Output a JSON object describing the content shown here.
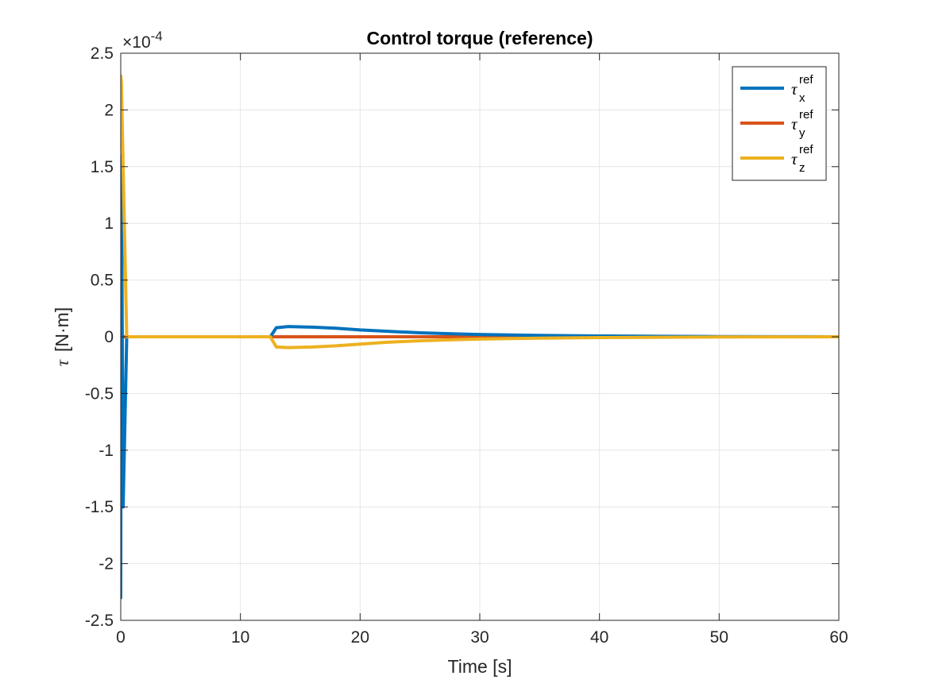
{
  "chart_data": {
    "type": "line",
    "title": "Control torque (reference)",
    "xlabel": "Time [s]",
    "ylabel_symbol": "τ",
    "ylabel_unit": "[N·m]",
    "y_exponent_base": "×10",
    "y_exponent_power": "-4",
    "xlim": [
      0,
      60
    ],
    "ylim": [
      -2.5,
      2.5
    ],
    "y_scale_factor": 0.0001,
    "x_ticks": [
      0,
      10,
      20,
      30,
      40,
      50,
      60
    ],
    "x_tick_labels": [
      "0",
      "10",
      "20",
      "30",
      "40",
      "50",
      "60"
    ],
    "y_ticks": [
      -2.5,
      -2,
      -1.5,
      -1,
      -0.5,
      0,
      0.5,
      1,
      1.5,
      2,
      2.5
    ],
    "y_tick_labels": [
      "-2.5",
      "-2",
      "-1.5",
      "-1",
      "-0.5",
      "0",
      "0.5",
      "1",
      "1.5",
      "2",
      "2.5"
    ],
    "grid": true,
    "legend_position": "top-right",
    "series": [
      {
        "name": "τx ref",
        "symbol": "τ",
        "subscript": "x",
        "superscript": "ref",
        "color": "#0072BD",
        "x": [
          0,
          0.05,
          0.2,
          0.5,
          1,
          12.5,
          13,
          14,
          16,
          18,
          20,
          22,
          25,
          28,
          30,
          35,
          40,
          45,
          50,
          55,
          60
        ],
        "y": [
          -2.3,
          1.6,
          -1.5,
          0,
          0,
          0,
          0.08,
          0.09,
          0.085,
          0.075,
          0.06,
          0.05,
          0.035,
          0.025,
          0.02,
          0.012,
          0.007,
          0.004,
          0.002,
          0.001,
          0
        ]
      },
      {
        "name": "τy ref",
        "symbol": "τ",
        "subscript": "y",
        "superscript": "ref",
        "color": "#D95319",
        "x": [
          0,
          0.5,
          1,
          60
        ],
        "y": [
          0,
          0,
          0,
          0
        ]
      },
      {
        "name": "τz ref",
        "symbol": "τ",
        "subscript": "z",
        "superscript": "ref",
        "color": "#EDB120",
        "x": [
          0,
          0.05,
          0.5,
          1,
          12.5,
          13,
          14,
          16,
          18,
          20,
          22,
          25,
          28,
          30,
          35,
          40,
          45,
          50,
          55,
          60
        ],
        "y": [
          2.3,
          2.25,
          0,
          0,
          0,
          -0.09,
          -0.095,
          -0.09,
          -0.08,
          -0.065,
          -0.05,
          -0.035,
          -0.025,
          -0.02,
          -0.012,
          -0.007,
          -0.004,
          -0.002,
          -0.001,
          0
        ]
      }
    ]
  }
}
